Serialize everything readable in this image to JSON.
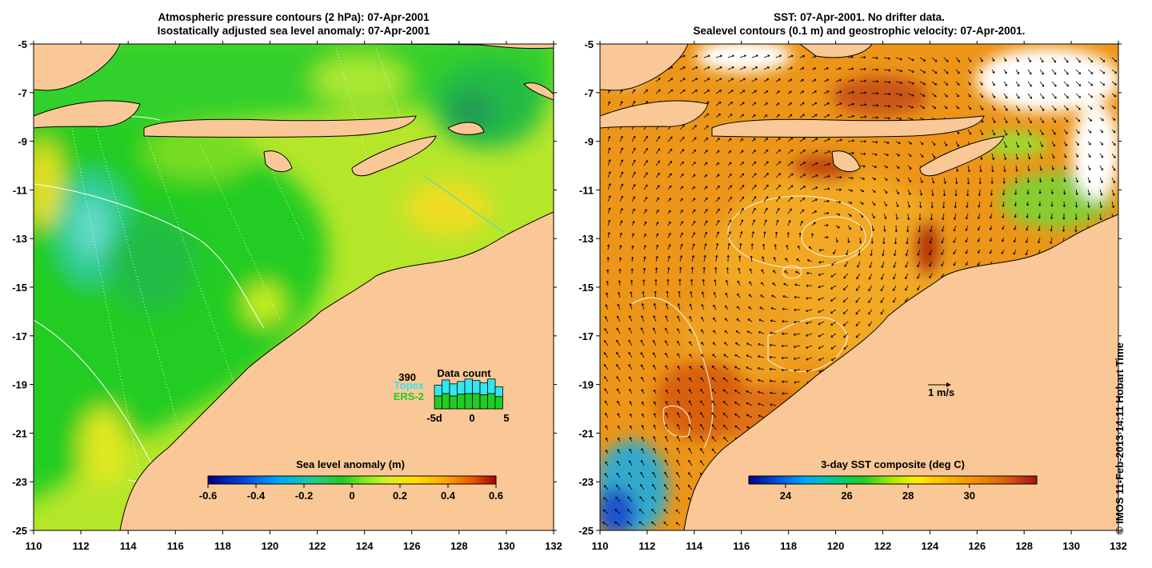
{
  "left_panel": {
    "title_line1": "Atmospheric pressure contours (2 hPa): 07-Apr-2001",
    "title_line2": "Isostatically adjusted sea level anomaly: 07-Apr-2001",
    "colorbar": {
      "label": "Sea level anomaly (m)",
      "ticks": [
        "-0.6",
        "-0.4",
        "-0.2",
        "0",
        "0.2",
        "0.4",
        "0.6"
      ],
      "range": [
        -0.6,
        0.6
      ]
    },
    "data_count": {
      "title": "Data count",
      "max_label": "390",
      "series": [
        {
          "name": "Topex",
          "color": "#33e6f0"
        },
        {
          "name": "ERS-2",
          "color": "#22cc22"
        }
      ],
      "x_ticks": [
        "-5d",
        "0",
        "5"
      ],
      "topex_totals": [
        0.78,
        0.95,
        0.82,
        0.9,
        0.98,
        0.93,
        0.86,
        0.98,
        0.72
      ],
      "ers_values": [
        0.42,
        0.5,
        0.42,
        0.48,
        0.5,
        0.5,
        0.46,
        0.5,
        0.4
      ]
    }
  },
  "right_panel": {
    "title_line1": "SST: 07-Apr-2001. No drifter data.",
    "title_line2": "Sealevel contours (0.1 m) and geostrophic velocity: 07-Apr-2001.",
    "colorbar": {
      "label": "3-day SST composite (deg C)",
      "ticks": [
        "24",
        "26",
        "28",
        "30"
      ],
      "range": [
        22.8,
        32.2
      ]
    },
    "velocity_scale_label": "1 m/s"
  },
  "axes": {
    "lon_ticks": [
      "110",
      "112",
      "114",
      "116",
      "118",
      "120",
      "122",
      "124",
      "126",
      "128",
      "130",
      "132"
    ],
    "lat_ticks": [
      "-5",
      "-7",
      "-9",
      "-11",
      "-13",
      "-15",
      "-17",
      "-19",
      "-21",
      "-23",
      "-25"
    ],
    "lon_range": [
      110,
      132
    ],
    "lat_range": [
      -25,
      -5
    ]
  },
  "credit": "© IMOS 11-Feb-2013 14:11 Hobart Time",
  "colors": {
    "land": "#fac896",
    "sla_scale": [
      "#000080",
      "#0044dd",
      "#00aaff",
      "#22cc88",
      "#22cc22",
      "#88ee22",
      "#ddf022",
      "#ffdd00",
      "#ffaa00",
      "#ee5500",
      "#aa0000"
    ],
    "sst_scale": [
      "#000080",
      "#0050e0",
      "#00aaff",
      "#00cc88",
      "#22cc22",
      "#aaee00",
      "#ffee00",
      "#ffbb00",
      "#f08a00",
      "#d85a10",
      "#a81010"
    ]
  }
}
